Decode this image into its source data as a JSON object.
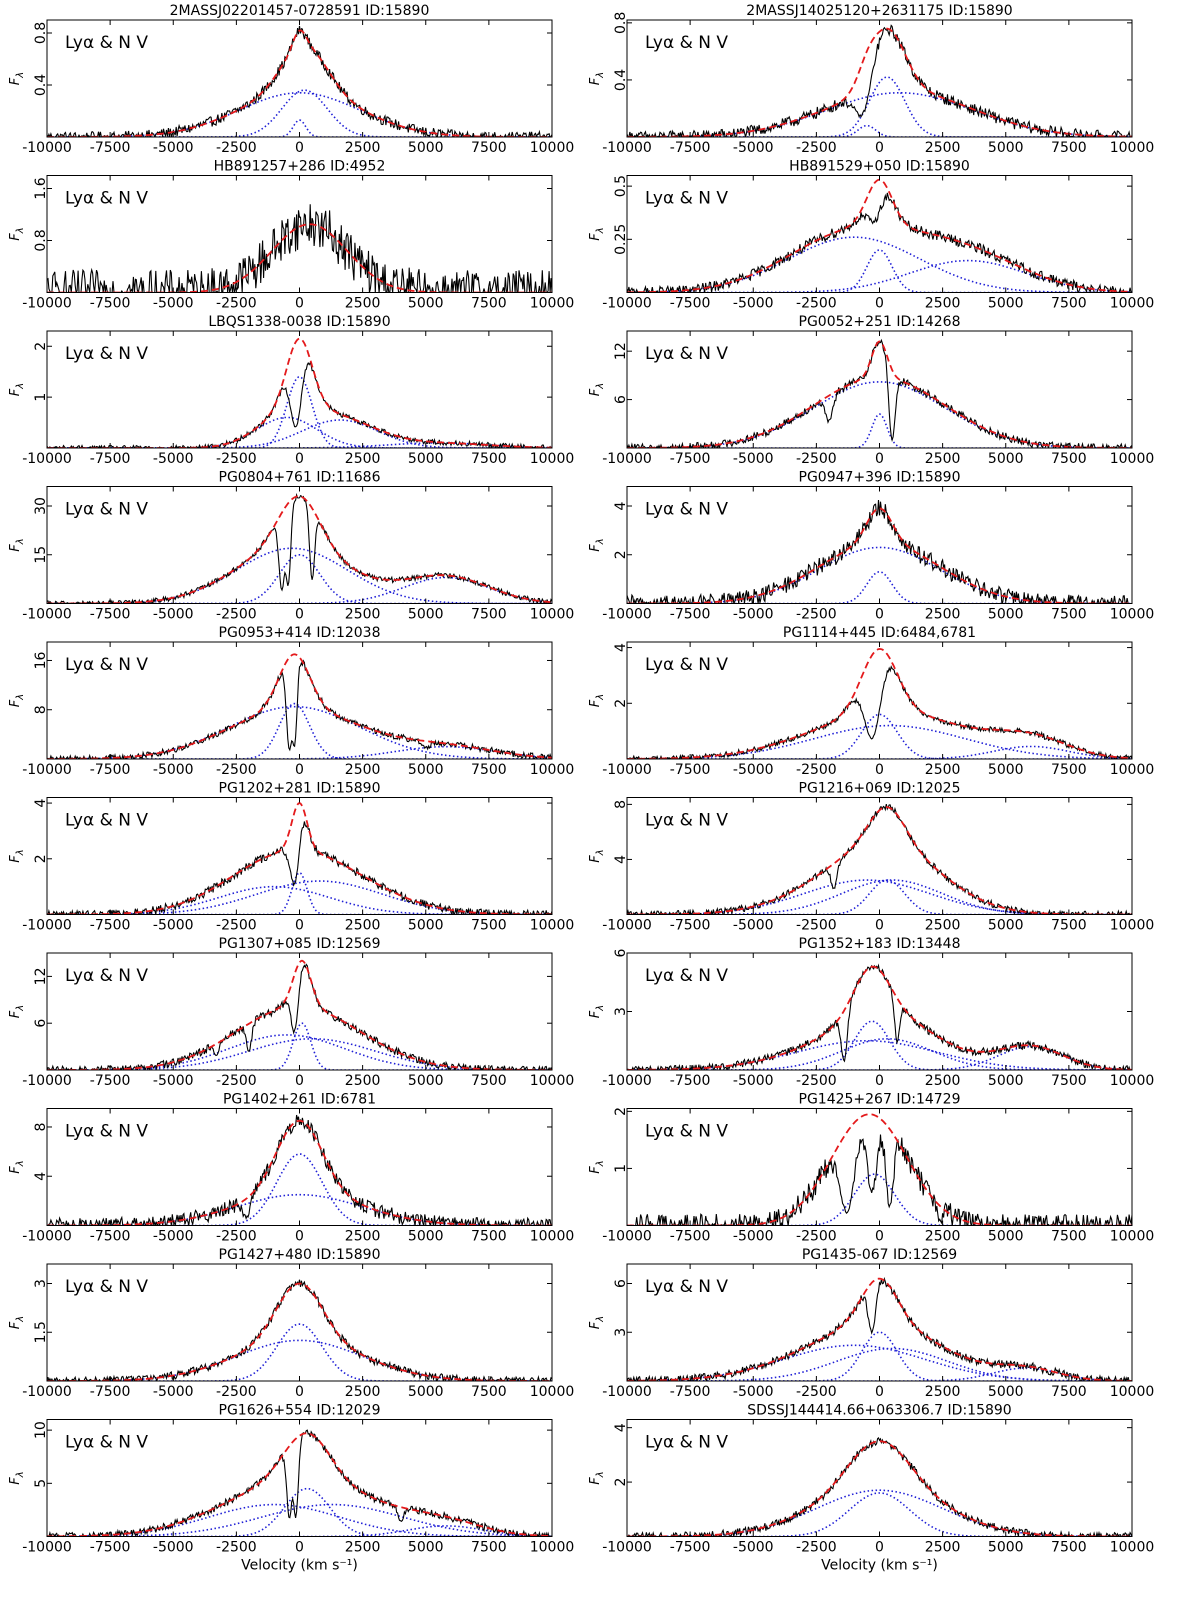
{
  "figure": {
    "xlabel": "Velocity (km s⁻¹)",
    "ylabel": "F",
    "ylabel_sub": "λ",
    "panel_label": "Lyα & N V",
    "colors": {
      "data": "#000000",
      "fit": "#e41a1c",
      "component": "#1f1fd6",
      "axis": "#000000"
    },
    "xticks": [
      -10000,
      -7500,
      -5000,
      -2500,
      0,
      2500,
      5000,
      7500,
      10000
    ]
  },
  "chart_data": [
    {
      "type": "line",
      "title": "2MASSJ02201457-0728591    ID:15890",
      "xlim": [
        -10000,
        10000
      ],
      "ylim": [
        0,
        0.9
      ],
      "yticks": [
        0.4,
        0.8
      ],
      "fit_peak": 0.82,
      "peak_velocity": 0,
      "absorption": [],
      "noise": 0.04,
      "components": [
        {
          "center": 0,
          "width": 2400,
          "amp": 0.34
        },
        {
          "center": 200,
          "width": 900,
          "amp": 0.36
        },
        {
          "center": 0,
          "width": 250,
          "amp": 0.13
        }
      ]
    },
    {
      "type": "line",
      "title": "2MASSJ14025120+2631175    ID:15890",
      "xlim": [
        -10000,
        10000
      ],
      "ylim": [
        0,
        0.82
      ],
      "yticks": [
        0.4,
        0.8
      ],
      "fit_peak": 0.76,
      "peak_velocity": 100,
      "absorption": [
        {
          "center": -700,
          "width": 350,
          "depth": 0.7
        }
      ],
      "noise": 0.04,
      "components": [
        {
          "center": 800,
          "width": 2900,
          "amp": 0.31
        },
        {
          "center": 300,
          "width": 700,
          "amp": 0.42
        },
        {
          "center": -500,
          "width": 350,
          "amp": 0.08
        }
      ]
    },
    {
      "type": "line",
      "title": "HB891257+286    ID:4952",
      "xlim": [
        -10000,
        10000
      ],
      "ylim": [
        0,
        1.8
      ],
      "yticks": [
        0.8,
        1.6
      ],
      "fit_peak": 1.05,
      "peak_velocity": 400,
      "absorption": [],
      "noise": 0.35,
      "components": []
    },
    {
      "type": "line",
      "title": "HB891529+050    ID:15890",
      "xlim": [
        -10000,
        10000
      ],
      "ylim": [
        0,
        0.55
      ],
      "yticks": [
        0.25,
        0.5
      ],
      "fit_peak": 0.53,
      "peak_velocity": -300,
      "absorption": [
        {
          "center": -200,
          "width": 300,
          "depth": 0.35
        }
      ],
      "noise": 0.025,
      "components": [
        {
          "center": -1000,
          "width": 2600,
          "amp": 0.26
        },
        {
          "center": 3500,
          "width": 2300,
          "amp": 0.15
        },
        {
          "center": 0,
          "width": 500,
          "amp": 0.2
        }
      ]
    },
    {
      "type": "line",
      "title": "LBQS1338-0038    ID:15890",
      "xlim": [
        -10000,
        10000
      ],
      "ylim": [
        0,
        2.3
      ],
      "yticks": [
        1,
        2
      ],
      "fit_peak": 2.15,
      "peak_velocity": 0,
      "absorption": [
        {
          "center": -150,
          "width": 250,
          "depth": 0.8
        }
      ],
      "noise": 0.05,
      "components": [
        {
          "center": -500,
          "width": 1200,
          "amp": 0.6
        },
        {
          "center": 1600,
          "width": 1500,
          "amp": 0.55
        },
        {
          "center": 0,
          "width": 500,
          "amp": 1.4
        },
        {
          "center": 5500,
          "width": 2000,
          "amp": 0.1
        }
      ]
    },
    {
      "type": "line",
      "title": "PG0052+251    ID:14268",
      "xlim": [
        -10000,
        10000
      ],
      "ylim": [
        0,
        14.5
      ],
      "yticks": [
        6,
        12
      ],
      "fit_peak": 13.2,
      "peak_velocity": 0,
      "absorption": [
        {
          "center": -2000,
          "width": 150,
          "depth": 0.5
        },
        {
          "center": 500,
          "width": 120,
          "depth": 0.9
        }
      ],
      "noise": 0.5,
      "components": [
        {
          "center": 0,
          "width": 2600,
          "amp": 8.2
        },
        {
          "center": 0,
          "width": 300,
          "amp": 4.2
        }
      ]
    },
    {
      "type": "line",
      "title": "PG0804+761    ID:11686",
      "xlim": [
        -10000,
        10000
      ],
      "ylim": [
        0,
        36
      ],
      "yticks": [
        15,
        30
      ],
      "fit_peak": 33,
      "peak_velocity": 0,
      "absorption": [
        {
          "center": -700,
          "width": 120,
          "depth": 0.85
        },
        {
          "center": -450,
          "width": 100,
          "depth": 0.8
        },
        {
          "center": 500,
          "width": 100,
          "depth": 0.75
        }
      ],
      "noise": 0.8,
      "components": [
        {
          "center": -300,
          "width": 2200,
          "amp": 17
        },
        {
          "center": 0,
          "width": 800,
          "amp": 15
        },
        {
          "center": 5800,
          "width": 1700,
          "amp": 8
        }
      ]
    },
    {
      "type": "line",
      "title": "PG0947+396    ID:15890",
      "xlim": [
        -10000,
        10000
      ],
      "ylim": [
        0,
        4.8
      ],
      "yticks": [
        2,
        4
      ],
      "fit_peak": 3.9,
      "peak_velocity": 0,
      "absorption": [],
      "noise": 0.35,
      "components": [
        {
          "center": 0,
          "width": 2400,
          "amp": 2.3
        },
        {
          "center": 0,
          "width": 500,
          "amp": 1.3
        }
      ]
    },
    {
      "type": "line",
      "title": "PG0953+414    ID:12038",
      "xlim": [
        -10000,
        10000
      ],
      "ylim": [
        0,
        19
      ],
      "yticks": [
        8,
        16
      ],
      "fit_peak": 17,
      "peak_velocity": -100,
      "absorption": [
        {
          "center": -400,
          "width": 120,
          "depth": 0.9
        },
        {
          "center": -200,
          "width": 100,
          "depth": 0.85
        },
        {
          "center": 5000,
          "width": 150,
          "depth": 0.4
        }
      ],
      "noise": 0.5,
      "components": [
        {
          "center": -200,
          "width": 2600,
          "amp": 8.5
        },
        {
          "center": -200,
          "width": 600,
          "amp": 9
        },
        {
          "center": 5800,
          "width": 2000,
          "amp": 2
        }
      ]
    },
    {
      "type": "line",
      "title": "PG1114+445    ID:6484,6781",
      "xlim": [
        -10000,
        10000
      ],
      "ylim": [
        0,
        4.2
      ],
      "yticks": [
        2,
        4
      ],
      "fit_peak": 3.95,
      "peak_velocity": 0,
      "absorption": [
        {
          "center": -300,
          "width": 350,
          "depth": 0.8
        }
      ],
      "noise": 0.1,
      "components": [
        {
          "center": 400,
          "width": 3000,
          "amp": 1.2
        },
        {
          "center": 0,
          "width": 700,
          "amp": 1.6
        },
        {
          "center": 6000,
          "width": 1500,
          "amp": 0.45
        }
      ]
    },
    {
      "type": "line",
      "title": "PG1202+281    ID:15890",
      "xlim": [
        -10000,
        10000
      ],
      "ylim": [
        0,
        4.2
      ],
      "yticks": [
        2,
        4
      ],
      "fit_peak": 4.0,
      "peak_velocity": 0,
      "absorption": [
        {
          "center": -200,
          "width": 200,
          "depth": 0.7
        }
      ],
      "noise": 0.15,
      "components": [
        {
          "center": -1000,
          "width": 2200,
          "amp": 1.0
        },
        {
          "center": 800,
          "width": 2500,
          "amp": 1.2
        },
        {
          "center": 0,
          "width": 300,
          "amp": 1.5
        }
      ]
    },
    {
      "type": "line",
      "title": "PG1216+069    ID:12025",
      "xlim": [
        -10000,
        10000
      ],
      "ylim": [
        0,
        8.5
      ],
      "yticks": [
        4,
        8
      ],
      "fit_peak": 7.8,
      "peak_velocity": 0,
      "absorption": [
        {
          "center": -1800,
          "width": 120,
          "depth": 0.5
        }
      ],
      "noise": 0.25,
      "components": [
        {
          "center": -500,
          "width": 2500,
          "amp": 2.5
        },
        {
          "center": 500,
          "width": 2000,
          "amp": 2.5
        },
        {
          "center": 300,
          "width": 700,
          "amp": 2.5
        }
      ]
    },
    {
      "type": "line",
      "title": "PG1307+085    ID:12569",
      "xlim": [
        -10000,
        10000
      ],
      "ylim": [
        0,
        15
      ],
      "yticks": [
        6,
        12
      ],
      "fit_peak": 14,
      "peak_velocity": 100,
      "absorption": [
        {
          "center": -200,
          "width": 150,
          "depth": 0.6
        },
        {
          "center": -2000,
          "width": 100,
          "depth": 0.6
        },
        {
          "center": -3300,
          "width": 100,
          "depth": 0.5
        }
      ],
      "noise": 0.5,
      "components": [
        {
          "center": -500,
          "width": 2300,
          "amp": 4.5
        },
        {
          "center": 500,
          "width": 2500,
          "amp": 4.0
        },
        {
          "center": 100,
          "width": 350,
          "amp": 6
        }
      ]
    },
    {
      "type": "line",
      "title": "PG1352+183    ID:13448",
      "xlim": [
        -10000,
        10000
      ],
      "ylim": [
        0,
        6
      ],
      "yticks": [
        3,
        6
      ],
      "fit_peak": 5.3,
      "peak_velocity": -300,
      "absorption": [
        {
          "center": -1400,
          "width": 120,
          "depth": 0.85
        },
        {
          "center": 700,
          "width": 100,
          "depth": 0.6
        }
      ],
      "noise": 0.2,
      "components": [
        {
          "center": -500,
          "width": 2800,
          "amp": 1.5
        },
        {
          "center": 300,
          "width": 1800,
          "amp": 1.6
        },
        {
          "center": -300,
          "width": 700,
          "amp": 2.5
        },
        {
          "center": 6000,
          "width": 1300,
          "amp": 1.2
        }
      ]
    },
    {
      "type": "line",
      "title": "PG1402+261    ID:6781",
      "xlim": [
        -10000,
        10000
      ],
      "ylim": [
        0,
        9.5
      ],
      "yticks": [
        4,
        8
      ],
      "fit_peak": 8.5,
      "peak_velocity": 0,
      "absorption": [
        {
          "center": -2100,
          "width": 150,
          "depth": 0.7
        }
      ],
      "noise": 0.6,
      "components": [
        {
          "center": 0,
          "width": 2500,
          "amp": 2.5
        },
        {
          "center": 0,
          "width": 900,
          "amp": 5.8
        }
      ]
    },
    {
      "type": "line",
      "title": "PG1425+267    ID:14729",
      "xlim": [
        -10000,
        10000
      ],
      "ylim": [
        0,
        2.05
      ],
      "yticks": [
        1,
        2
      ],
      "fit_peak": 1.95,
      "peak_velocity": -400,
      "absorption": [
        {
          "center": -1300,
          "width": 300,
          "depth": 0.85
        },
        {
          "center": -300,
          "width": 200,
          "depth": 0.7
        },
        {
          "center": 400,
          "width": 150,
          "depth": 0.8
        },
        {
          "center": 2400,
          "width": 100,
          "depth": 0.8
        }
      ],
      "noise": 0.2,
      "components": [
        {
          "center": -200,
          "width": 800,
          "amp": 0.9
        }
      ]
    },
    {
      "type": "line",
      "title": "PG1427+480    ID:15890",
      "xlim": [
        -10000,
        10000
      ],
      "ylim": [
        0,
        3.6
      ],
      "yticks": [
        1.5,
        3.0
      ],
      "fit_peak": 3.0,
      "peak_velocity": 0,
      "absorption": [],
      "noise": 0.12,
      "components": [
        {
          "center": 0,
          "width": 2500,
          "amp": 1.25
        },
        {
          "center": 0,
          "width": 900,
          "amp": 1.75
        }
      ]
    },
    {
      "type": "line",
      "title": "PG1435-067    ID:12569",
      "xlim": [
        -10000,
        10000
      ],
      "ylim": [
        0,
        7.2
      ],
      "yticks": [
        3,
        6
      ],
      "fit_peak": 6.3,
      "peak_velocity": 0,
      "absorption": [
        {
          "center": -300,
          "width": 150,
          "depth": 0.5
        }
      ],
      "noise": 0.25,
      "components": [
        {
          "center": -1000,
          "width": 2800,
          "amp": 2.2
        },
        {
          "center": 500,
          "width": 2200,
          "amp": 2.0
        },
        {
          "center": 0,
          "width": 700,
          "amp": 3.0
        },
        {
          "center": 5800,
          "width": 1300,
          "amp": 0.8
        }
      ]
    },
    {
      "type": "line",
      "title": "PG1626+554    ID:12029",
      "xlim": [
        -10000,
        10000
      ],
      "ylim": [
        0,
        11
      ],
      "yticks": [
        5,
        10
      ],
      "fit_peak": 9.7,
      "peak_velocity": 0,
      "absorption": [
        {
          "center": -400,
          "width": 100,
          "depth": 0.8
        },
        {
          "center": -150,
          "width": 100,
          "depth": 0.8
        },
        {
          "center": 4000,
          "width": 100,
          "depth": 0.5
        }
      ],
      "noise": 0.35,
      "components": [
        {
          "center": -1000,
          "width": 2600,
          "amp": 3.0
        },
        {
          "center": 1300,
          "width": 2800,
          "amp": 3.0
        },
        {
          "center": 300,
          "width": 900,
          "amp": 4.5
        },
        {
          "center": 5800,
          "width": 1500,
          "amp": 1.0
        }
      ]
    },
    {
      "type": "line",
      "title": "SDSSJ144414.66+063306.7    ID:15890",
      "xlim": [
        -10000,
        10000
      ],
      "ylim": [
        0,
        4.3
      ],
      "yticks": [
        2,
        4
      ],
      "fit_peak": 3.5,
      "peak_velocity": 0,
      "absorption": [],
      "noise": 0.15,
      "components": [
        {
          "center": 0,
          "width": 2500,
          "amp": 1.7
        },
        {
          "center": 0,
          "width": 1200,
          "amp": 1.6
        }
      ]
    }
  ]
}
